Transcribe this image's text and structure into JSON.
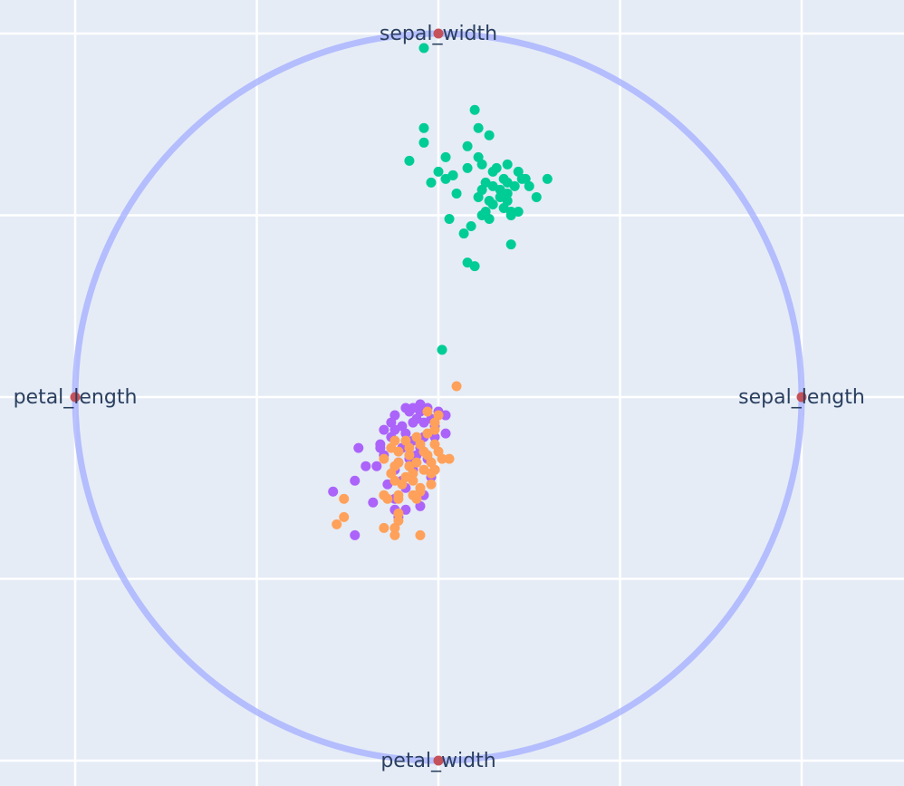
{
  "chart_data": {
    "type": "scatter",
    "title": "",
    "xlim": [
      -1.0,
      1.0
    ],
    "ylim": [
      -1.0,
      1.0
    ],
    "grid": true,
    "legend": "none",
    "colors": {
      "background": "#e5ecf6",
      "grid": "#ffffff",
      "circle": "#a3aeff",
      "anchor": "#c5515a"
    },
    "anchors": [
      {
        "label": "sepal_width",
        "x": 0.0,
        "y": 1.0
      },
      {
        "label": "sepal_length",
        "x": 1.0,
        "y": 0.0
      },
      {
        "label": "petal_width",
        "x": 0.0,
        "y": -1.0
      },
      {
        "label": "petal_length",
        "x": -1.0,
        "y": 0.0
      }
    ],
    "series": [
      {
        "color": "#00cc96",
        "points": [
          [
            -0.04,
            0.96
          ],
          [
            0.1,
            0.79
          ],
          [
            0.11,
            0.74
          ],
          [
            0.14,
            0.72
          ],
          [
            -0.04,
            0.74
          ],
          [
            -0.04,
            0.7
          ],
          [
            -0.08,
            0.65
          ],
          [
            0.02,
            0.66
          ],
          [
            0.08,
            0.69
          ],
          [
            0.11,
            0.66
          ],
          [
            0.19,
            0.64
          ],
          [
            0.0,
            0.62
          ],
          [
            0.04,
            0.61
          ],
          [
            0.08,
            0.63
          ],
          [
            0.12,
            0.64
          ],
          [
            0.15,
            0.62
          ],
          [
            0.18,
            0.6
          ],
          [
            0.22,
            0.62
          ],
          [
            0.24,
            0.6
          ],
          [
            0.3,
            0.6
          ],
          [
            0.02,
            0.6
          ],
          [
            0.04,
            0.61
          ],
          [
            0.16,
            0.63
          ],
          [
            0.13,
            0.59
          ],
          [
            0.15,
            0.58
          ],
          [
            0.19,
            0.59
          ],
          [
            0.21,
            0.58
          ],
          [
            0.23,
            0.6
          ],
          [
            -0.02,
            0.59
          ],
          [
            0.12,
            0.57
          ],
          [
            0.17,
            0.55
          ],
          [
            0.19,
            0.56
          ],
          [
            0.25,
            0.58
          ],
          [
            0.05,
            0.56
          ],
          [
            0.11,
            0.55
          ],
          [
            0.14,
            0.54
          ],
          [
            0.15,
            0.53
          ],
          [
            0.19,
            0.54
          ],
          [
            0.27,
            0.55
          ],
          [
            0.13,
            0.51
          ],
          [
            0.18,
            0.52
          ],
          [
            0.2,
            0.51
          ],
          [
            0.22,
            0.51
          ],
          [
            0.03,
            0.49
          ],
          [
            0.12,
            0.5
          ],
          [
            0.14,
            0.49
          ],
          [
            0.2,
            0.5
          ],
          [
            0.09,
            0.47
          ],
          [
            0.07,
            0.45
          ],
          [
            0.2,
            0.42
          ],
          [
            0.08,
            0.37
          ],
          [
            0.1,
            0.36
          ],
          [
            0.01,
            0.13
          ],
          [
            0.17,
            0.57
          ]
        ]
      },
      {
        "color": "#ab63fa",
        "points": [
          [
            -0.09,
            -0.03
          ],
          [
            -0.05,
            -0.02
          ],
          [
            -0.08,
            -0.04
          ],
          [
            -0.12,
            -0.05
          ],
          [
            -0.05,
            -0.04
          ],
          [
            -0.02,
            -0.06
          ],
          [
            -0.06,
            -0.06
          ],
          [
            0.02,
            -0.05
          ],
          [
            -0.1,
            -0.08
          ],
          [
            -0.07,
            -0.07
          ],
          [
            -0.15,
            -0.09
          ],
          [
            -0.12,
            -0.09
          ],
          [
            -0.04,
            -0.07
          ],
          [
            -0.01,
            -0.08
          ],
          [
            -0.13,
            -0.11
          ],
          [
            -0.09,
            -0.1
          ],
          [
            -0.07,
            -0.12
          ],
          [
            -0.01,
            -0.11
          ],
          [
            0.02,
            -0.1
          ],
          [
            -0.16,
            -0.13
          ],
          [
            -0.1,
            -0.14
          ],
          [
            -0.05,
            -0.14
          ],
          [
            -0.15,
            -0.16
          ],
          [
            -0.08,
            -0.17
          ],
          [
            -0.03,
            -0.17
          ],
          [
            -0.11,
            -0.18
          ],
          [
            -0.17,
            -0.19
          ],
          [
            -0.12,
            -0.2
          ],
          [
            -0.07,
            -0.2
          ],
          [
            -0.02,
            -0.22
          ],
          [
            -0.1,
            -0.23
          ],
          [
            -0.14,
            -0.24
          ],
          [
            -0.09,
            -0.25
          ],
          [
            -0.2,
            -0.19
          ],
          [
            -0.04,
            -0.27
          ],
          [
            -0.18,
            -0.29
          ],
          [
            -0.12,
            -0.28
          ],
          [
            -0.23,
            -0.23
          ],
          [
            -0.05,
            -0.3
          ],
          [
            -0.09,
            -0.31
          ],
          [
            -0.11,
            -0.33
          ],
          [
            -0.16,
            -0.14
          ],
          [
            -0.07,
            -0.03
          ],
          [
            0.0,
            -0.04
          ],
          [
            -0.04,
            -0.11
          ],
          [
            -0.13,
            -0.07
          ],
          [
            -0.03,
            -0.03
          ],
          [
            -0.06,
            -0.16
          ],
          [
            -0.01,
            -0.2
          ],
          [
            -0.22,
            -0.14
          ],
          [
            -0.29,
            -0.26
          ],
          [
            -0.12,
            -0.31
          ],
          [
            -0.23,
            -0.38
          ]
        ]
      },
      {
        "color": "#ffa15a",
        "points": [
          [
            0.05,
            0.03
          ],
          [
            0.0,
            -0.05
          ],
          [
            -0.01,
            -0.09
          ],
          [
            -0.03,
            -0.1
          ],
          [
            -0.06,
            -0.11
          ],
          [
            -0.09,
            -0.12
          ],
          [
            -0.12,
            -0.12
          ],
          [
            -0.05,
            -0.13
          ],
          [
            -0.01,
            -0.13
          ],
          [
            -0.13,
            -0.14
          ],
          [
            -0.08,
            -0.14
          ],
          [
            -0.04,
            -0.15
          ],
          [
            0.0,
            -0.15
          ],
          [
            -0.11,
            -0.15
          ],
          [
            -0.08,
            -0.16
          ],
          [
            -0.03,
            -0.16
          ],
          [
            0.01,
            -0.17
          ],
          [
            -0.15,
            -0.17
          ],
          [
            -0.06,
            -0.18
          ],
          [
            -0.02,
            -0.18
          ],
          [
            0.03,
            -0.17
          ],
          [
            -0.11,
            -0.18
          ],
          [
            -0.08,
            -0.19
          ],
          [
            -0.04,
            -0.2
          ],
          [
            -0.12,
            -0.19
          ],
          [
            -0.07,
            -0.21
          ],
          [
            -0.02,
            -0.21
          ],
          [
            -0.12,
            -0.23
          ],
          [
            -0.07,
            -0.23
          ],
          [
            -0.1,
            -0.24
          ],
          [
            -0.05,
            -0.25
          ],
          [
            -0.01,
            -0.2
          ],
          [
            -0.13,
            -0.21
          ],
          [
            -0.09,
            -0.22
          ],
          [
            -0.14,
            -0.28
          ],
          [
            -0.11,
            -0.28
          ],
          [
            -0.15,
            -0.27
          ],
          [
            -0.05,
            -0.26
          ],
          [
            -0.06,
            -0.28
          ],
          [
            -0.07,
            -0.27
          ],
          [
            -0.11,
            -0.27
          ],
          [
            -0.12,
            -0.36
          ],
          [
            -0.11,
            -0.34
          ],
          [
            -0.05,
            -0.38
          ],
          [
            -0.26,
            -0.28
          ],
          [
            -0.12,
            -0.38
          ],
          [
            -0.26,
            -0.33
          ],
          [
            -0.28,
            -0.35
          ],
          [
            -0.11,
            -0.32
          ],
          [
            -0.15,
            -0.36
          ],
          [
            -0.03,
            -0.04
          ],
          [
            -0.01,
            -0.07
          ],
          [
            -0.02,
            -0.24
          ]
        ]
      }
    ]
  }
}
